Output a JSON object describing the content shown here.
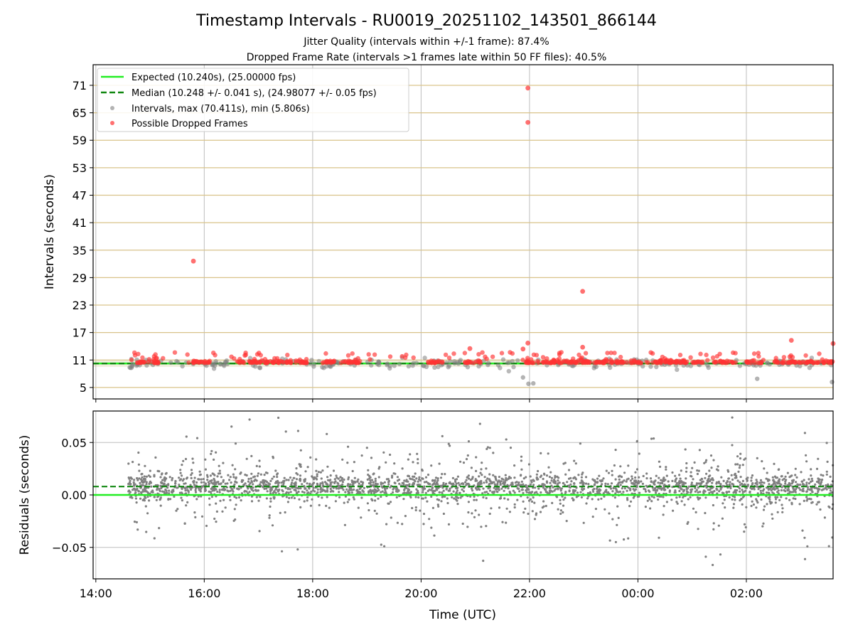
{
  "chart_data": [
    {
      "type": "scatter",
      "title": "Timestamp Intervals - RU0019_20251102_143501_866144",
      "subtitle_1": "Jitter Quality (intervals within +/-1 frame): 87.4%",
      "subtitle_2": "Dropped Frame Rate (intervals >1 frames late within 50 FF files): 40.5%",
      "ylabel": "Intervals (seconds)",
      "xlim_hours": [
        13.95,
        27.6
      ],
      "ylim": [
        2.5,
        75.5
      ],
      "yticks": [
        5,
        11,
        17,
        23,
        29,
        35,
        41,
        47,
        53,
        59,
        65,
        71
      ],
      "ytick_labels": [
        "5",
        "11",
        "17",
        "23",
        "29",
        "35",
        "41",
        "47",
        "53",
        "59",
        "65",
        "71"
      ],
      "x_hours_start": 14.6,
      "x_hours_end": 27.6,
      "legend": {
        "position": "top-left",
        "entries": [
          "Expected (10.240s), (25.00000 fps)",
          "Median (10.248 +/- 0.041 s), (24.98077 +/- 0.05 fps)",
          "Intervals, max (70.411s), min (5.806s)",
          "Possible Dropped Frames"
        ]
      },
      "series": [
        {
          "name": "Expected (10.240s), (25.00000 fps)",
          "kind": "hline",
          "y": 10.24,
          "color": "#22ee22"
        },
        {
          "name": "Median (10.248 +/- 0.041 s), (24.98077 +/- 0.05 fps)",
          "kind": "hline-dashed",
          "y": 10.248,
          "color": "#118811"
        },
        {
          "name": "Intervals, max (70.411s), min (5.806s)",
          "kind": "scatter",
          "color": "#808080",
          "max": 70.411,
          "min": 5.806
        },
        {
          "name": "Possible Dropped Frames",
          "kind": "scatter",
          "color": "#ff3333",
          "notable_points": [
            {
              "x_hour": 15.8,
              "y": 32.6
            },
            {
              "x_hour": 21.97,
              "y": 70.4
            },
            {
              "x_hour": 21.97,
              "y": 62.9
            },
            {
              "x_hour": 22.98,
              "y": 26.0
            },
            {
              "x_hour": 21.97,
              "y": 14.7
            },
            {
              "x_hour": 26.83,
              "y": 15.3
            },
            {
              "x_hour": 27.6,
              "y": 14.6
            },
            {
              "x_hour": 20.9,
              "y": 13.5
            },
            {
              "x_hour": 21.88,
              "y": 13.4
            },
            {
              "x_hour": 22.98,
              "y": 13.8
            }
          ]
        },
        {
          "name": "min-points",
          "kind": "scatter",
          "color": "#808080",
          "notable_points": [
            {
              "x_hour": 21.98,
              "y": 5.8
            },
            {
              "x_hour": 22.07,
              "y": 5.9
            },
            {
              "x_hour": 27.58,
              "y": 6.2
            },
            {
              "x_hour": 21.88,
              "y": 7.2
            },
            {
              "x_hour": 26.2,
              "y": 6.9
            }
          ]
        }
      ]
    },
    {
      "type": "scatter",
      "ylabel": "Residuals (seconds)",
      "xlabel": "Time (UTC)",
      "ylim": [
        -0.08,
        0.08
      ],
      "yticks": [
        -0.05,
        0.0,
        0.05
      ],
      "ytick_labels": [
        "−0.05",
        "0.00",
        "0.05"
      ],
      "xticks_hours": [
        14,
        16,
        18,
        20,
        22,
        24,
        26
      ],
      "xtick_labels": [
        "14:00",
        "16:00",
        "18:00",
        "20:00",
        "22:00",
        "00:00",
        "02:00"
      ],
      "series": [
        {
          "name": "expected",
          "kind": "hline",
          "y": 0.0,
          "color": "#22ee22"
        },
        {
          "name": "median",
          "kind": "hline-dashed",
          "y": 0.008,
          "color": "#118811"
        },
        {
          "name": "residuals",
          "kind": "scatter",
          "color": "#808080"
        }
      ]
    }
  ]
}
